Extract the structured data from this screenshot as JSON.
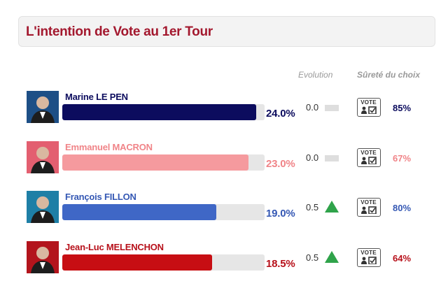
{
  "title": "L'intention de Vote au 1er Tour",
  "headers": {
    "evolution": "Evolution",
    "surete": "Sûreté du choix"
  },
  "chart_data": {
    "type": "bar",
    "orientation": "horizontal",
    "title": "L'intention de Vote au 1er Tour",
    "xlim": [
      0,
      25
    ],
    "categories": [
      "Marine LE PEN",
      "Emmanuel MACRON",
      "François FILLON",
      "Jean-Luc MELENCHON"
    ],
    "values": [
      24.0,
      23.0,
      19.0,
      18.5
    ],
    "value_labels": [
      "24.0%",
      "23.0%",
      "19.0%",
      "18.5%"
    ],
    "evolution": [
      0.0,
      0.0,
      0.5,
      0.5
    ],
    "evolution_labels": [
      "0.0",
      "0.0",
      "0.5",
      "0.5"
    ],
    "evolution_direction": [
      "flat",
      "flat",
      "up",
      "up"
    ],
    "surete": [
      "85%",
      "67%",
      "80%",
      "64%"
    ],
    "colors": [
      "#0c0c5e",
      "#f59a9e",
      "#3f67c6",
      "#c70e13"
    ]
  },
  "candidates": [
    {
      "name": "Marine LE PEN",
      "percent": "24.0%",
      "evolution": "0.0",
      "trend": "flat",
      "surete": "85%",
      "color": "#0c0c5e",
      "text_color": "#0c0c5e",
      "photo_bg": "#1d4f86",
      "vote_label": "VOTE"
    },
    {
      "name": "Emmanuel MACRON",
      "percent": "23.0%",
      "evolution": "0.0",
      "trend": "flat",
      "surete": "67%",
      "color": "#f59a9e",
      "text_color": "#f08488",
      "photo_bg": "#e35f70",
      "vote_label": "VOTE"
    },
    {
      "name": "François FILLON",
      "percent": "19.0%",
      "evolution": "0.5",
      "trend": "up",
      "surete": "80%",
      "color": "#3f67c6",
      "text_color": "#3558b4",
      "photo_bg": "#1e7fa6",
      "vote_label": "VOTE"
    },
    {
      "name": "Jean-Luc MELENCHON",
      "percent": "18.5%",
      "evolution": "0.5",
      "trend": "up",
      "surete": "64%",
      "color": "#c70e13",
      "text_color": "#b7101a",
      "photo_bg": "#b3141c",
      "vote_label": "VOTE"
    }
  ]
}
